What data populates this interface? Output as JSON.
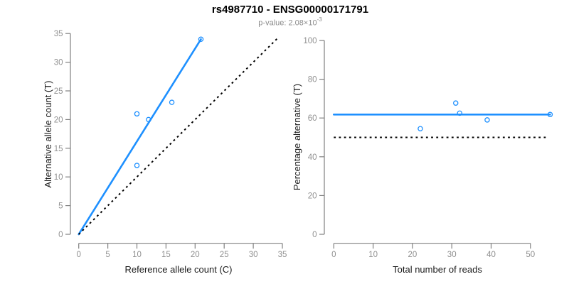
{
  "header": {
    "title": "rs4987710 - ENSG00000171791",
    "pvalue_prefix": "p-value: 2.08×10",
    "pvalue_exponent": "-3"
  },
  "colors": {
    "accent_blue": "#1E90FF",
    "axis_gray": "#808080",
    "tick_label_gray": "#909090",
    "label_black": "#1a1a1a",
    "subtitle_gray": "#8c8c8c",
    "dotted_black": "#000000"
  },
  "chart_data": [
    {
      "type": "scatter",
      "xlabel": "Reference allele count (C)",
      "ylabel": "Alternative allele count (T)",
      "xlim": [
        0,
        35
      ],
      "ylim": [
        0,
        35
      ],
      "xticks": [
        0,
        5,
        10,
        15,
        20,
        25,
        30,
        35
      ],
      "yticks": [
        0,
        5,
        10,
        15,
        20,
        25,
        30,
        35
      ],
      "grid": false,
      "legend": "none",
      "points": [
        [
          10,
          12
        ],
        [
          10,
          21
        ],
        [
          12,
          20
        ],
        [
          16,
          23
        ],
        [
          21,
          34
        ]
      ],
      "lines": [
        {
          "name": "fit",
          "from": [
            0,
            0
          ],
          "to": [
            21,
            34
          ],
          "color": "#1E90FF",
          "style": "solid"
        },
        {
          "name": "identity",
          "from": [
            0,
            0
          ],
          "to": [
            34.2,
            34.2
          ],
          "color": "#000000",
          "style": "dotted"
        }
      ]
    },
    {
      "type": "scatter",
      "xlabel": "Total number of reads",
      "ylabel": "Percentage alternative (T)",
      "xlim": [
        0,
        55
      ],
      "ylim": [
        0,
        100
      ],
      "xticks": [
        0,
        10,
        20,
        30,
        40,
        50
      ],
      "yticks": [
        0,
        20,
        40,
        60,
        80,
        100
      ],
      "grid": false,
      "legend": "none",
      "points": [
        [
          22,
          54.5
        ],
        [
          31,
          67.7
        ],
        [
          32,
          62.5
        ],
        [
          39,
          59
        ],
        [
          55,
          61.8
        ]
      ],
      "lines": [
        {
          "name": "mean-percentage",
          "from": [
            0,
            61.8
          ],
          "to": [
            55,
            61.8
          ],
          "color": "#1E90FF",
          "style": "solid"
        },
        {
          "name": "fifty-percent-reference",
          "from": [
            0,
            50
          ],
          "to": [
            54,
            50
          ],
          "color": "#000000",
          "style": "dotted"
        }
      ]
    }
  ]
}
